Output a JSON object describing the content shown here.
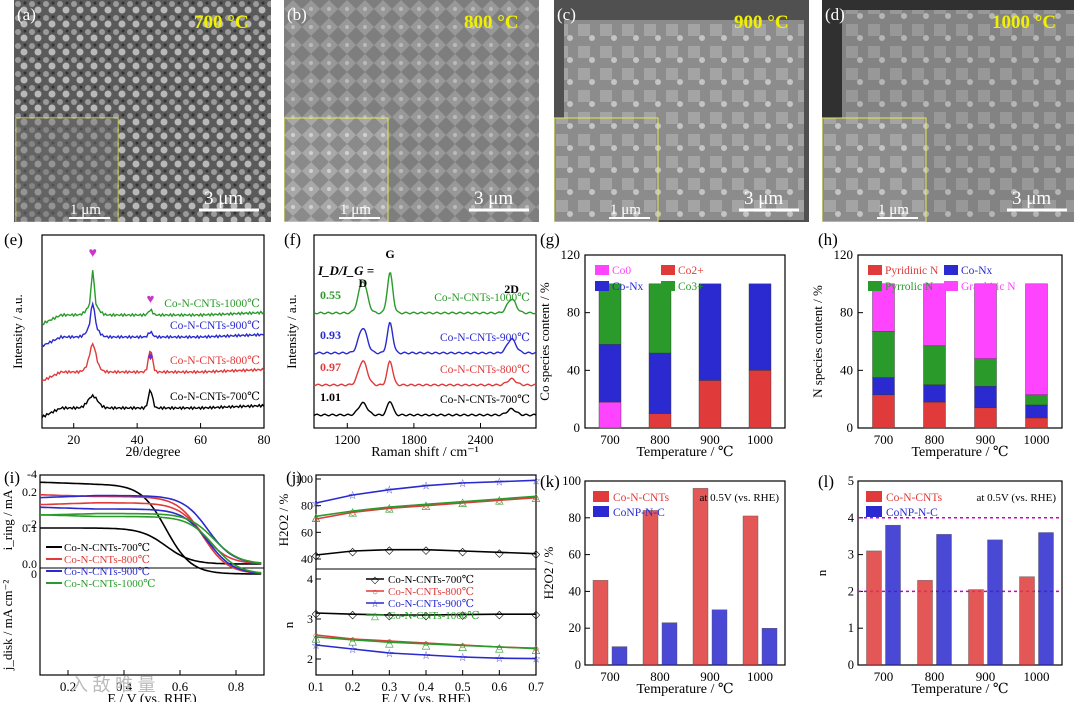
{
  "figure": {
    "colors": {
      "black": "#000000",
      "red": "#e03a3a",
      "blue": "#2a2ad0",
      "green": "#2a9a2a",
      "magenta": "#ff44ff",
      "yellow": "#f0f000",
      "gray": "#7a7a7a"
    },
    "sem": [
      {
        "label": "(a)",
        "temp": "700 °C",
        "scale": "3 μm",
        "inset_scale": "1 μm"
      },
      {
        "label": "(b)",
        "temp": "800 °C",
        "scale": "3 μm",
        "inset_scale": "1 μm"
      },
      {
        "label": "(c)",
        "temp": "900 °C",
        "scale": "3 μm",
        "inset_scale": "1 μm"
      },
      {
        "label": "(d)",
        "temp": "1000 °C",
        "scale": "3 μm",
        "inset_scale": "1 μm"
      }
    ],
    "watermark": "入 敌 唯 量"
  },
  "chart_data": [
    {
      "id": "e",
      "type": "line",
      "label": "(e)",
      "xlabel": "2θ/degree",
      "ylabel": "Intensity / a.u.",
      "xlim": [
        10,
        80
      ],
      "xticks": [
        "20",
        "40",
        "60",
        "80"
      ],
      "series": [
        {
          "name": "Co-N-CNTs-1000℃",
          "color": "green"
        },
        {
          "name": "Co-N-CNTs-900℃",
          "color": "blue"
        },
        {
          "name": "Co-N-CNTs-800℃",
          "color": "red"
        },
        {
          "name": "Co-N-CNTs-700℃",
          "color": "black"
        }
      ],
      "markers": [
        "♥",
        "♥",
        "♦"
      ]
    },
    {
      "id": "f",
      "type": "line",
      "label": "(f)",
      "xlabel": "Raman shift / cm⁻¹",
      "ylabel": "Intensity / a.u.",
      "xlim": [
        900,
        2900
      ],
      "xticks": [
        "1200",
        "1800",
        "2400"
      ],
      "ratio_header": "I_D/I_G =",
      "peaks": [
        "D",
        "G",
        "2D"
      ],
      "series": [
        {
          "name": "Co-N-CNTs-1000℃",
          "color": "green",
          "ratio": "0.55"
        },
        {
          "name": "Co-N-CNTs-900℃",
          "color": "blue",
          "ratio": "0.93"
        },
        {
          "name": "Co-N-CNTs-800℃",
          "color": "red",
          "ratio": "0.97"
        },
        {
          "name": "Co-N-CNTs-700℃",
          "color": "black",
          "ratio": "1.01"
        }
      ]
    },
    {
      "id": "g",
      "type": "bar",
      "label": "(g)",
      "xlabel": "Temperature / ℃",
      "ylabel": "Co species content / %",
      "categories": [
        "700",
        "800",
        "900",
        "1000"
      ],
      "ylim": [
        0,
        120
      ],
      "yticks": [
        "0",
        "40",
        "80",
        "120"
      ],
      "legend": [
        {
          "name": "Co0",
          "color": "magenta"
        },
        {
          "name": "Co2+",
          "color": "red"
        },
        {
          "name": "Co-Nx",
          "color": "blue"
        },
        {
          "name": "Co3+",
          "color": "green"
        }
      ],
      "series": [
        {
          "name": "Co0",
          "values": [
            18,
            0,
            0,
            0
          ]
        },
        {
          "name": "Co2+",
          "values": [
            0,
            10,
            33,
            40
          ]
        },
        {
          "name": "Co-Nx",
          "values": [
            40,
            42,
            67,
            60
          ]
        },
        {
          "name": "Co3+",
          "values": [
            42,
            48,
            0,
            0
          ]
        }
      ]
    },
    {
      "id": "h",
      "type": "bar",
      "label": "(h)",
      "xlabel": "Temperature / ℃",
      "ylabel": "N species content / %",
      "categories": [
        "700",
        "800",
        "900",
        "1000"
      ],
      "ylim": [
        0,
        120
      ],
      "yticks": [
        "0",
        "40",
        "80",
        "120"
      ],
      "legend": [
        {
          "name": "Pyridinic N",
          "color": "red"
        },
        {
          "name": "Co-Nx",
          "color": "blue"
        },
        {
          "name": "Pyrrolic N",
          "color": "green"
        },
        {
          "name": "Graphitic N",
          "color": "magenta"
        }
      ],
      "series": [
        {
          "name": "Pyridinic N",
          "values": [
            23,
            18,
            14,
            7
          ]
        },
        {
          "name": "Co-Nx",
          "values": [
            12,
            12,
            15,
            9
          ]
        },
        {
          "name": "Pyrrolic N",
          "values": [
            32,
            27,
            19,
            7
          ]
        },
        {
          "name": "Graphitic N",
          "values": [
            33,
            43,
            52,
            77
          ]
        }
      ]
    },
    {
      "id": "i",
      "type": "line",
      "label": "(i)",
      "xlabel": "E / V (vs. RHE)",
      "ylabel_top": "i_ring / mA",
      "ylabel_bottom": "j_disk / mA cm⁻²",
      "xlim": [
        0.1,
        0.9
      ],
      "xticks": [
        "0.2",
        "0.4",
        "0.6",
        "0.8"
      ],
      "yticks_top": [
        "0.0",
        "0.1",
        "0.2"
      ],
      "yticks_bottom": [
        "-4",
        "-2",
        "0"
      ],
      "series": [
        {
          "name": "Co-N-CNTs-700℃",
          "color": "black"
        },
        {
          "name": "Co-N-CNTs-800℃",
          "color": "red"
        },
        {
          "name": "Co-N-CNTs-900℃",
          "color": "blue"
        },
        {
          "name": "Co-N-CNTs-1000℃",
          "color": "green"
        }
      ]
    },
    {
      "id": "j",
      "type": "line",
      "label": "(j)",
      "xlabel": "E / V (vs. RHE)",
      "ylabel_top": "H2O2 / %",
      "ylabel_bottom": "n",
      "xlim": [
        0.1,
        0.7
      ],
      "xticks": [
        "0.1",
        "0.2",
        "0.3",
        "0.4",
        "0.5",
        "0.6",
        "0.7"
      ],
      "yticks_top": [
        "40",
        "60",
        "80",
        "100"
      ],
      "yticks_bottom": [
        "2",
        "3",
        "4"
      ],
      "series": [
        {
          "name": "Co-N-CNTs-700℃",
          "color": "black",
          "h2o2": [
            43,
            46,
            47,
            47,
            46,
            45,
            44
          ],
          "n": [
            3.15,
            3.12,
            3.1,
            3.1,
            3.11,
            3.12,
            3.12
          ]
        },
        {
          "name": "Co-N-CNTs-800℃",
          "color": "red",
          "h2o2": [
            70,
            75,
            78,
            80,
            82,
            84,
            86
          ],
          "n": [
            2.6,
            2.5,
            2.45,
            2.4,
            2.35,
            2.3,
            2.27
          ]
        },
        {
          "name": "Co-N-CNTs-900℃",
          "color": "blue",
          "h2o2": [
            82,
            88,
            92,
            95,
            97,
            98,
            99
          ],
          "n": [
            2.35,
            2.25,
            2.15,
            2.1,
            2.05,
            2.02,
            2.01
          ]
        },
        {
          "name": "Co-N-CNTs-1000℃",
          "color": "green",
          "h2o2": [
            72,
            76,
            79,
            81,
            83,
            85,
            87
          ],
          "n": [
            2.55,
            2.48,
            2.42,
            2.38,
            2.34,
            2.3,
            2.26
          ]
        }
      ]
    },
    {
      "id": "k",
      "type": "bar",
      "label": "(k)",
      "xlabel": "Temperature / ℃",
      "ylabel": "H2O2 / %",
      "annotation": "at 0.5V (vs. RHE)",
      "categories": [
        "700",
        "800",
        "900",
        "1000"
      ],
      "ylim": [
        0,
        100
      ],
      "yticks": [
        "0",
        "20",
        "40",
        "60",
        "80",
        "100"
      ],
      "series": [
        {
          "name": "Co-N-CNTs",
          "color": "red",
          "values": [
            46,
            84,
            96,
            81
          ]
        },
        {
          "name": "CoNP-N-C",
          "color": "blue",
          "values": [
            10,
            23,
            30,
            20
          ]
        }
      ]
    },
    {
      "id": "l",
      "type": "bar",
      "label": "(l)",
      "xlabel": "Temperature / ℃",
      "ylabel": "n",
      "annotation": "at 0.5V (vs. RHE)",
      "categories": [
        "700",
        "800",
        "900",
        "1000"
      ],
      "ylim": [
        0,
        5
      ],
      "yticks": [
        "0",
        "1",
        "2",
        "3",
        "4",
        "5"
      ],
      "reference_lines": [
        4,
        2
      ],
      "series": [
        {
          "name": "Co-N-CNTs",
          "color": "red",
          "values": [
            3.1,
            2.3,
            2.05,
            2.4
          ]
        },
        {
          "name": "CoNP-N-C",
          "color": "blue",
          "values": [
            3.8,
            3.55,
            3.4,
            3.6
          ]
        }
      ]
    }
  ]
}
